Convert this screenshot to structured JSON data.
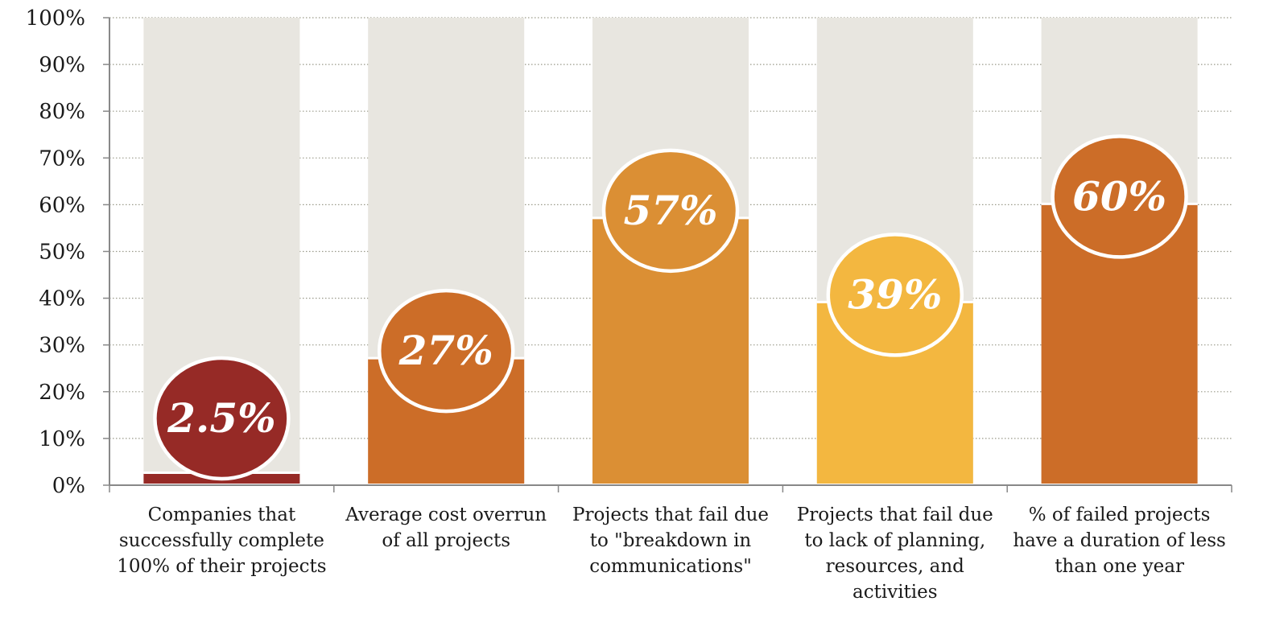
{
  "chart_data": {
    "type": "bar",
    "categories": [
      [
        "Companies that",
        "successfully complete",
        "100% of their projects"
      ],
      [
        "Average cost overrun",
        "of all projects"
      ],
      [
        "Projects that fail due",
        "to \"breakdown in",
        "communications\""
      ],
      [
        "Projects that fail due",
        "to lack of planning,",
        "resources, and",
        "activities"
      ],
      [
        "% of failed projects",
        "have a duration of less",
        "than one year"
      ]
    ],
    "values": [
      2.5,
      27,
      57,
      39,
      60
    ],
    "value_labels": [
      "2.5%",
      "27%",
      "57%",
      "39%",
      "60%"
    ],
    "ylim": [
      0,
      100
    ],
    "yticks": [
      "0%",
      "10%",
      "20%",
      "30%",
      "40%",
      "50%",
      "60%",
      "70%",
      "80%",
      "90%",
      "100%"
    ],
    "grid": true,
    "colors": {
      "bars": [
        "#962a26",
        "#cc6d28",
        "#db8f34",
        "#f3b740",
        "#cc6d28"
      ],
      "background_bar": "#e8e6e0",
      "gridline": "#9a9a8a",
      "axis": "#888888"
    }
  }
}
